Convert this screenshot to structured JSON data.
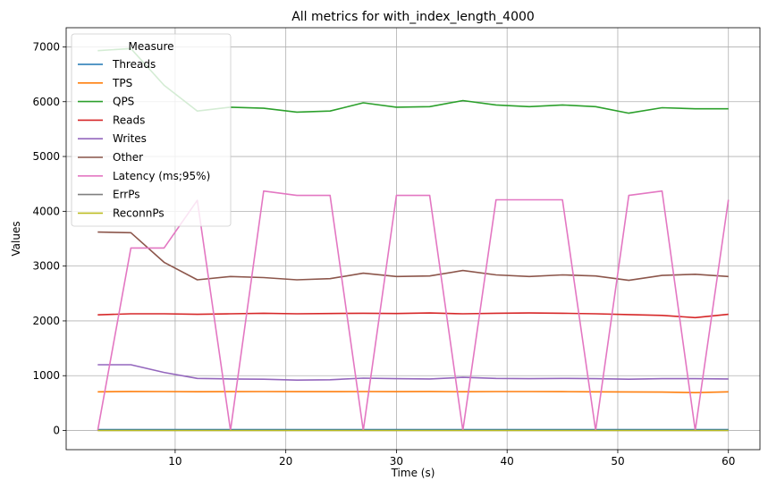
{
  "chart_data": {
    "type": "line",
    "title": "All metrics for with_index_length_4000",
    "xlabel": "Time (s)",
    "ylabel": "Values",
    "xlim": [
      0.15,
      62.85
    ],
    "ylim": [
      -350,
      7350
    ],
    "x_ticks": [
      10,
      20,
      30,
      40,
      50,
      60
    ],
    "y_ticks": [
      0,
      1000,
      2000,
      3000,
      4000,
      5000,
      6000,
      7000
    ],
    "grid": true,
    "legend_title": "Measure",
    "legend_position": "upper left",
    "x": [
      3,
      6,
      9,
      12,
      15,
      18,
      21,
      24,
      27,
      30,
      33,
      36,
      39,
      42,
      45,
      48,
      51,
      54,
      57,
      60
    ],
    "series": [
      {
        "name": "Threads",
        "color": "#1f77b4",
        "values": [
          16,
          16,
          16,
          16,
          16,
          16,
          16,
          16,
          16,
          16,
          16,
          16,
          16,
          16,
          16,
          16,
          16,
          16,
          16,
          16
        ]
      },
      {
        "name": "TPS",
        "color": "#ff7f0e",
        "values": [
          705,
          712,
          710,
          707,
          709,
          711,
          708,
          709,
          710,
          709,
          712,
          707,
          710,
          711,
          709,
          706,
          704,
          700,
          690,
          705
        ]
      },
      {
        "name": "QPS",
        "color": "#2ca02c",
        "values": [
          6930,
          6970,
          6300,
          5830,
          5900,
          5880,
          5810,
          5830,
          5980,
          5900,
          5910,
          6020,
          5940,
          5910,
          5940,
          5910,
          5790,
          5890,
          5870,
          5870
        ]
      },
      {
        "name": "Reads",
        "color": "#d62728",
        "values": [
          2110,
          2130,
          2130,
          2120,
          2130,
          2140,
          2130,
          2135,
          2140,
          2135,
          2145,
          2130,
          2140,
          2145,
          2140,
          2130,
          2115,
          2100,
          2060,
          2120
        ]
      },
      {
        "name": "Writes",
        "color": "#9467bd",
        "values": [
          1200,
          1200,
          1060,
          950,
          940,
          935,
          920,
          925,
          955,
          945,
          940,
          970,
          950,
          945,
          950,
          945,
          935,
          945,
          945,
          940
        ]
      },
      {
        "name": "Other",
        "color": "#8c564b",
        "values": [
          3620,
          3610,
          3070,
          2750,
          2810,
          2790,
          2750,
          2770,
          2870,
          2810,
          2820,
          2920,
          2840,
          2810,
          2840,
          2820,
          2740,
          2830,
          2850,
          2810
        ]
      },
      {
        "name": "Latency (ms;95%)",
        "color": "#e377c2",
        "values": [
          0,
          3330,
          3330,
          4200,
          0,
          4370,
          4290,
          4290,
          0,
          4290,
          4290,
          0,
          4210,
          4210,
          4210,
          0,
          4290,
          4370,
          0,
          4210
        ]
      },
      {
        "name": "ErrPs",
        "color": "#7f7f7f",
        "values": [
          0,
          0,
          0,
          0,
          0,
          0,
          0,
          0,
          0,
          0,
          0,
          0,
          0,
          0,
          0,
          0,
          0,
          0,
          0,
          0
        ]
      },
      {
        "name": "ReconnPs",
        "color": "#bcbd22",
        "values": [
          0,
          0,
          0,
          0,
          0,
          0,
          0,
          0,
          0,
          0,
          0,
          0,
          0,
          0,
          0,
          0,
          0,
          0,
          0,
          0
        ]
      }
    ]
  }
}
